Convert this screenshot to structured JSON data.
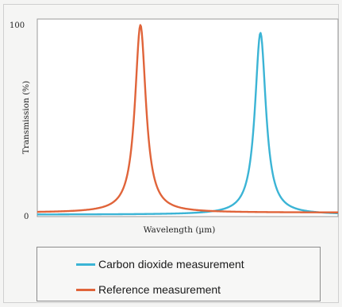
{
  "chart_data": {
    "type": "line",
    "title": "",
    "xlabel": "Wavelength (µm)",
    "ylabel": "Transmission (%)",
    "ylim": [
      0,
      100
    ],
    "yticks": [
      "0",
      "100"
    ],
    "x_ticks_shown": false,
    "grid": false,
    "legend_position": "bottom",
    "series": [
      {
        "name": "Carbon dioxide measurement",
        "color": "#3bb4d5",
        "peak_center_fraction": 0.742,
        "peak_value": 93,
        "baseline": 1
      },
      {
        "name": "Reference measurement",
        "color": "#e0643a",
        "peak_center_fraction": 0.343,
        "peak_value": 97,
        "baseline": 2
      }
    ]
  }
}
